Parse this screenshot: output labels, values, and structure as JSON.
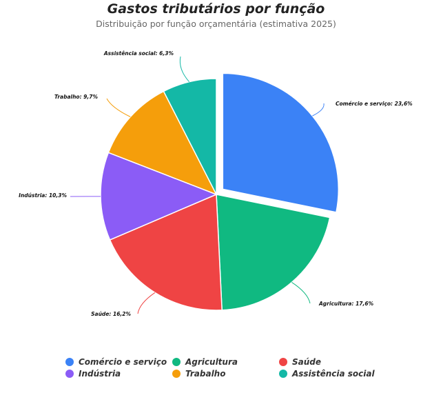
{
  "chart_data": {
    "type": "pie",
    "title": "Gastos tributários por função",
    "subtitle": "Distribuição por função orçamentária (estimativa 2025)",
    "slices": [
      {
        "name": "Comércio e serviço",
        "value": 23.6,
        "label": "Comércio e serviço: 23,6%",
        "color": "#3b82f6",
        "exploded": true
      },
      {
        "name": "Agricultura",
        "value": 17.6,
        "label": "Agricultura: 17,6%",
        "color": "#10b981"
      },
      {
        "name": "Saúde",
        "value": 16.2,
        "label": "Saúde: 16,2%",
        "color": "#ef4444"
      },
      {
        "name": "Indústria",
        "value": 10.3,
        "label": "Indústria: 10,3%",
        "color": "#8b5cf6"
      },
      {
        "name": "Trabalho",
        "value": 9.7,
        "label": "Trabalho: 9,7%",
        "color": "#f59e0b"
      },
      {
        "name": "Assistência social",
        "value": 6.3,
        "label": "Assistência social: 6,3%",
        "color": "#14b8a6"
      }
    ],
    "legend_position": "bottom"
  }
}
